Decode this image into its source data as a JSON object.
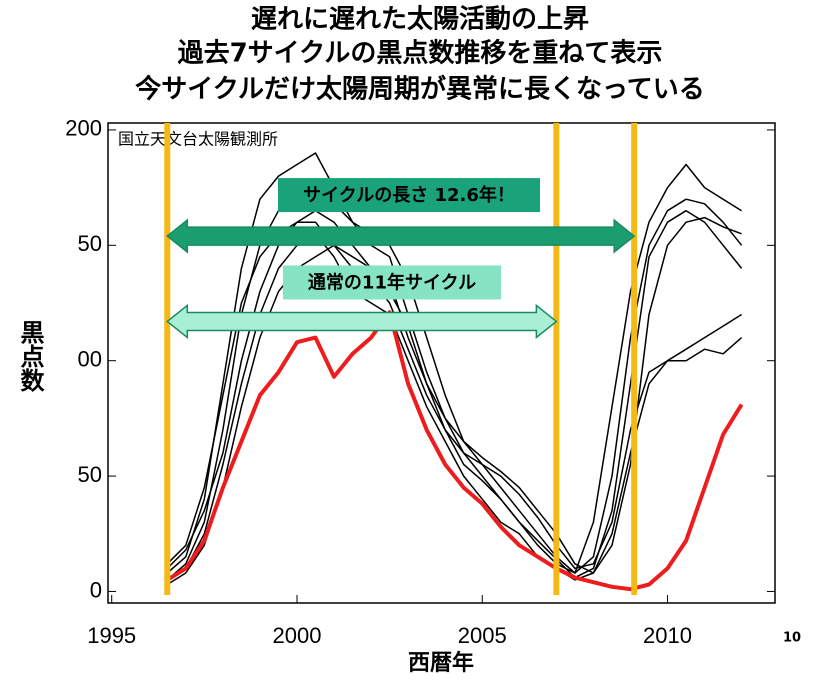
{
  "title_lines": [
    "遅れに遅れた太陽活動の上昇",
    "過去7サイクルの黒点数推移を重ねて表示",
    "今サイクルだけ太陽周期が異常に長くなっている"
  ],
  "page_number": "10",
  "chart_data": {
    "type": "line",
    "annotation": "国立天文台太陽観測所",
    "ylabel": "黒点数",
    "xlabel": "西暦年",
    "xlim": [
      1994.9,
      2012.9
    ],
    "ylim": [
      -5,
      203
    ],
    "xticks": [
      1995,
      2000,
      2005,
      2010
    ],
    "yticks": [
      0,
      50,
      {
        "value": 100,
        "label": "00"
      },
      {
        "value": 150,
        "label": "50"
      },
      200
    ],
    "vlines": [
      1996.5,
      2007,
      2009.1
    ],
    "vline_color": "#f5b914",
    "arrows": [
      {
        "label": "サイクルの長さ 12.6年！",
        "x": [
          1996.5,
          2009.1
        ],
        "y": 154,
        "color": "#1a9e70",
        "label_color": "#1aa37a"
      },
      {
        "label": "通常の11年サイクル",
        "x": [
          1996.5,
          2007
        ],
        "y": 117,
        "color": "#a9efd6",
        "label_color": "#86e3c4"
      }
    ],
    "x": [
      1996.5,
      1997,
      1997.5,
      1998,
      1998.5,
      1999,
      1999.5,
      2000,
      2000.5,
      2001,
      2001.5,
      2002,
      2002.5,
      2003,
      2003.5,
      2004,
      2004.5,
      2005,
      2005.5,
      2006,
      2006.5,
      2007,
      2007.5,
      2008,
      2008.5,
      2009,
      2009.5,
      2010,
      2010.5,
      2011,
      2011.5,
      2012
    ],
    "series": [
      {
        "color": "#000000",
        "values": [
          8,
          15,
          40,
          90,
          140,
          170,
          180,
          185,
          190,
          175,
          160,
          150,
          145,
          120,
          95,
          75,
          60,
          50,
          40,
          30,
          20,
          12,
          8,
          30,
          80,
          130,
          160,
          175,
          185,
          175,
          170,
          165
        ]
      },
      {
        "color": "#000000",
        "values": [
          5,
          12,
          30,
          70,
          120,
          150,
          165,
          170,
          175,
          168,
          160,
          155,
          150,
          135,
          110,
          85,
          65,
          55,
          45,
          35,
          25,
          15,
          8,
          15,
          50,
          110,
          150,
          165,
          170,
          168,
          160,
          150
        ]
      },
      {
        "color": "#000000",
        "values": [
          10,
          18,
          35,
          60,
          100,
          130,
          150,
          160,
          165,
          160,
          150,
          140,
          135,
          110,
          90,
          70,
          55,
          48,
          40,
          30,
          22,
          14,
          6,
          10,
          35,
          90,
          145,
          160,
          165,
          160,
          150,
          140
        ]
      },
      {
        "color": "#000000",
        "values": [
          5,
          10,
          25,
          55,
          90,
          120,
          140,
          150,
          155,
          145,
          130,
          125,
          120,
          100,
          80,
          65,
          50,
          40,
          30,
          25,
          15,
          10,
          5,
          8,
          25,
          60,
          90,
          100,
          105,
          110,
          115,
          120
        ]
      },
      {
        "color": "#000000",
        "values": [
          12,
          20,
          45,
          85,
          125,
          145,
          155,
          160,
          160,
          150,
          140,
          135,
          125,
          105,
          85,
          70,
          60,
          55,
          50,
          42,
          32,
          20,
          10,
          12,
          30,
          70,
          95,
          100,
          100,
          105,
          103,
          110
        ]
      },
      {
        "color": "#000000",
        "values": [
          3,
          8,
          20,
          45,
          80,
          110,
          130,
          140,
          145,
          150,
          145,
          140,
          130,
          115,
          90,
          75,
          65,
          58,
          52,
          45,
          35,
          25,
          12,
          8,
          20,
          55,
          120,
          150,
          160,
          162,
          158,
          155
        ]
      },
      {
        "color": "#ee1c1c",
        "values": [
          5,
          10,
          22,
          45,
          65,
          85,
          95,
          108,
          110,
          93,
          103,
          110,
          121,
          90,
          70,
          55,
          45,
          38,
          28,
          20,
          15,
          10,
          6,
          4,
          2,
          1,
          3,
          10,
          22,
          45,
          68,
          81
        ]
      }
    ]
  }
}
